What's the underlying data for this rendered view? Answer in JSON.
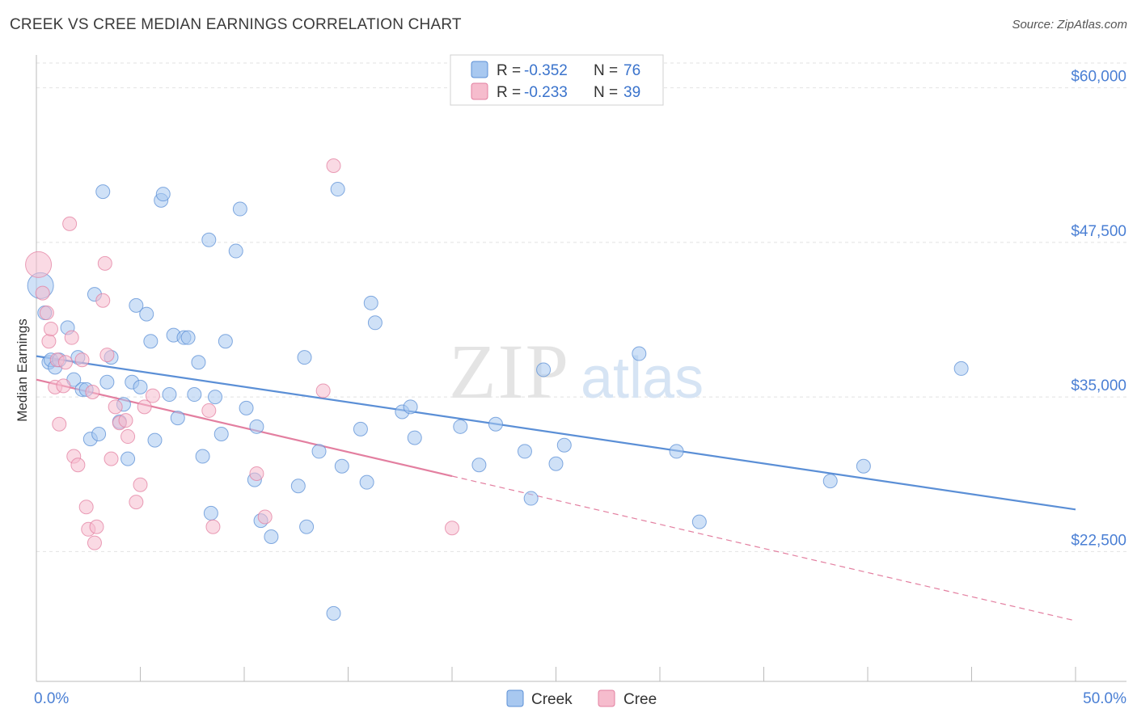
{
  "title": "CREEK VS CREE MEDIAN EARNINGS CORRELATION CHART",
  "source": "Source: ZipAtlas.com",
  "watermark": {
    "zip": "ZIP",
    "atlas": "atlas"
  },
  "legend_box": [
    {
      "r_label": "R =",
      "r_value": "-0.352",
      "n_label": "N =",
      "n_value": "76",
      "color": "#a8c8f0",
      "border": "#5b8fd6"
    },
    {
      "r_label": "R =",
      "r_value": "-0.233",
      "n_label": "N =",
      "n_value": "39",
      "color": "#f6bccd",
      "border": "#e37fa0"
    }
  ],
  "bottom_legend": [
    {
      "label": "Creek",
      "color": "#a8c8f0",
      "border": "#5b8fd6"
    },
    {
      "label": "Cree",
      "color": "#f6bccd",
      "border": "#e37fa0"
    }
  ],
  "chart_data": {
    "type": "scatter",
    "title": "CREEK VS CREE MEDIAN EARNINGS CORRELATION CHART",
    "xlabel": "",
    "ylabel": "Median Earnings",
    "xlim": [
      0,
      50
    ],
    "ylim": [
      12000,
      62000
    ],
    "x_tick_labels": [
      "0.0%",
      "50.0%"
    ],
    "y_ticks": [
      22500,
      35000,
      47500,
      60000
    ],
    "y_tick_labels": [
      "$22,500",
      "$35,000",
      "$47,500",
      "$60,000"
    ],
    "grid": true,
    "legend_position": "top-center",
    "series": [
      {
        "name": "Creek",
        "color": "#5b8fd6",
        "fill": "#a8c8f0",
        "trend": {
          "x": [
            0,
            50
          ],
          "y": [
            38300,
            25900
          ],
          "style": "solid"
        },
        "points": [
          [
            0.2,
            44000
          ],
          [
            0.4,
            41800
          ],
          [
            0.6,
            37800
          ],
          [
            0.7,
            38000
          ],
          [
            0.9,
            37400
          ],
          [
            1.1,
            38000
          ],
          [
            1.5,
            40600
          ],
          [
            1.8,
            36400
          ],
          [
            2.0,
            38200
          ],
          [
            2.2,
            35600
          ],
          [
            2.4,
            35600
          ],
          [
            2.6,
            31600
          ],
          [
            2.8,
            43300
          ],
          [
            3.0,
            32000
          ],
          [
            3.2,
            51600
          ],
          [
            3.4,
            36200
          ],
          [
            3.6,
            38200
          ],
          [
            4.0,
            33000
          ],
          [
            4.2,
            34400
          ],
          [
            4.4,
            30000
          ],
          [
            4.6,
            36200
          ],
          [
            4.8,
            42400
          ],
          [
            5.0,
            35800
          ],
          [
            5.3,
            41700
          ],
          [
            5.5,
            39500
          ],
          [
            5.7,
            31500
          ],
          [
            6.0,
            50900
          ],
          [
            6.1,
            51400
          ],
          [
            6.4,
            35200
          ],
          [
            6.6,
            40000
          ],
          [
            6.8,
            33300
          ],
          [
            7.1,
            39800
          ],
          [
            7.3,
            39800
          ],
          [
            7.6,
            35200
          ],
          [
            7.8,
            37800
          ],
          [
            8.0,
            30200
          ],
          [
            8.3,
            47700
          ],
          [
            8.4,
            25600
          ],
          [
            8.6,
            35000
          ],
          [
            8.9,
            32000
          ],
          [
            9.1,
            39500
          ],
          [
            9.6,
            46800
          ],
          [
            9.8,
            50200
          ],
          [
            10.1,
            34100
          ],
          [
            10.5,
            28300
          ],
          [
            10.6,
            32600
          ],
          [
            10.8,
            25000
          ],
          [
            11.3,
            23700
          ],
          [
            12.6,
            27800
          ],
          [
            12.9,
            38200
          ],
          [
            13.0,
            24500
          ],
          [
            13.6,
            30600
          ],
          [
            14.3,
            17500
          ],
          [
            14.5,
            51800
          ],
          [
            14.7,
            29400
          ],
          [
            15.6,
            32400
          ],
          [
            15.9,
            28100
          ],
          [
            16.1,
            42600
          ],
          [
            16.3,
            41000
          ],
          [
            17.6,
            33800
          ],
          [
            18.0,
            34200
          ],
          [
            18.2,
            31700
          ],
          [
            20.4,
            32600
          ],
          [
            21.3,
            29500
          ],
          [
            22.1,
            32800
          ],
          [
            23.5,
            30600
          ],
          [
            23.8,
            26800
          ],
          [
            24.4,
            37200
          ],
          [
            25.0,
            29600
          ],
          [
            25.4,
            31100
          ],
          [
            29.0,
            38500
          ],
          [
            30.8,
            30600
          ],
          [
            31.9,
            24900
          ],
          [
            38.2,
            28200
          ],
          [
            39.8,
            29400
          ],
          [
            44.5,
            37300
          ]
        ]
      },
      {
        "name": "Cree",
        "color": "#e37fa0",
        "fill": "#f6bccd",
        "trend": {
          "x": [
            0,
            20.0
          ],
          "y": [
            36400,
            28600
          ],
          "style": "solid",
          "dashed_to": [
            50,
            16900
          ]
        },
        "points": [
          [
            0.1,
            45700
          ],
          [
            0.3,
            43400
          ],
          [
            0.5,
            41800
          ],
          [
            0.6,
            39500
          ],
          [
            0.7,
            40500
          ],
          [
            0.9,
            35800
          ],
          [
            1.0,
            38000
          ],
          [
            1.1,
            32800
          ],
          [
            1.3,
            35900
          ],
          [
            1.4,
            37800
          ],
          [
            1.6,
            49000
          ],
          [
            1.7,
            39800
          ],
          [
            1.8,
            30200
          ],
          [
            2.0,
            29500
          ],
          [
            2.2,
            38000
          ],
          [
            2.4,
            26100
          ],
          [
            2.5,
            24300
          ],
          [
            2.7,
            35400
          ],
          [
            2.8,
            23200
          ],
          [
            2.9,
            24500
          ],
          [
            3.2,
            42800
          ],
          [
            3.3,
            45800
          ],
          [
            3.4,
            38400
          ],
          [
            3.6,
            30000
          ],
          [
            3.8,
            34200
          ],
          [
            4.0,
            32900
          ],
          [
            4.3,
            33100
          ],
          [
            4.4,
            31800
          ],
          [
            4.8,
            26500
          ],
          [
            5.0,
            27900
          ],
          [
            5.2,
            34200
          ],
          [
            5.6,
            35100
          ],
          [
            8.3,
            33900
          ],
          [
            8.5,
            24500
          ],
          [
            10.6,
            28800
          ],
          [
            11.0,
            25300
          ],
          [
            13.8,
            35500
          ],
          [
            14.3,
            53700
          ],
          [
            20.0,
            24400
          ]
        ]
      }
    ]
  }
}
